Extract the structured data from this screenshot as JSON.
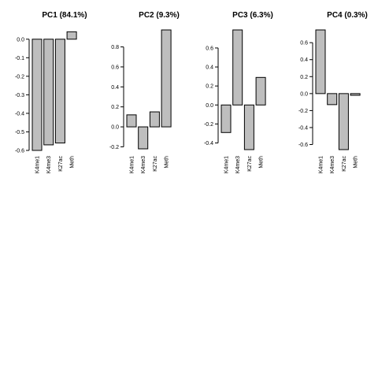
{
  "chart_data": [
    {
      "type": "bar",
      "title": "PC1 (84.1%)",
      "categories": [
        "K4me1",
        "K4me3",
        "K27ac",
        "Meth"
      ],
      "values": [
        -0.6,
        -0.57,
        -0.56,
        0.04
      ],
      "ylim": [
        -0.6,
        0.05
      ],
      "yticks": [
        0.0,
        -0.1,
        -0.2,
        -0.3,
        -0.4,
        -0.5,
        -0.6
      ],
      "ytick_labels": [
        "0.0",
        "-0.1",
        "-0.2",
        "-0.3",
        "-0.4",
        "-0.5",
        "-0.6"
      ],
      "bar_color": "#bebebe",
      "grid": false
    },
    {
      "type": "bar",
      "title": "PC2 (9.3%)",
      "categories": [
        "K4me1",
        "K4me3",
        "K27ac",
        "Meth"
      ],
      "values": [
        0.12,
        -0.22,
        0.15,
        0.97
      ],
      "ylim": [
        -0.22,
        0.97
      ],
      "yticks": [
        -0.2,
        0.0,
        0.2,
        0.4,
        0.6,
        0.8
      ],
      "ytick_labels": [
        "-0.2",
        "0.0",
        "0.2",
        "0.4",
        "0.6",
        "0.8"
      ],
      "bar_color": "#bebebe",
      "grid": false
    },
    {
      "type": "bar",
      "title": "PC3 (6.3%)",
      "categories": [
        "K4me1",
        "K4me3",
        "K27ac",
        "Meth"
      ],
      "values": [
        -0.29,
        0.79,
        -0.47,
        0.29
      ],
      "ylim": [
        -0.47,
        0.79
      ],
      "yticks": [
        -0.4,
        -0.2,
        0.0,
        0.2,
        0.4,
        0.6
      ],
      "ytick_labels": [
        "-0.4",
        "-0.2",
        "0.0",
        "0.2",
        "0.4",
        "0.6"
      ],
      "bar_color": "#bebebe",
      "grid": false
    },
    {
      "type": "bar",
      "title": "PC4 (0.3%)",
      "categories": [
        "K4me1",
        "K4me3",
        "K27ac",
        "Meth"
      ],
      "values": [
        0.75,
        -0.13,
        -0.66,
        -0.02
      ],
      "ylim": [
        -0.66,
        0.75
      ],
      "yticks": [
        -0.6,
        -0.4,
        -0.2,
        0.0,
        0.2,
        0.4,
        0.6
      ],
      "ytick_labels": [
        "-0.6",
        "-0.4",
        "-0.2",
        "0.0",
        "0.2",
        "0.4",
        "0.6"
      ],
      "bar_color": "#bebebe",
      "grid": false
    }
  ]
}
